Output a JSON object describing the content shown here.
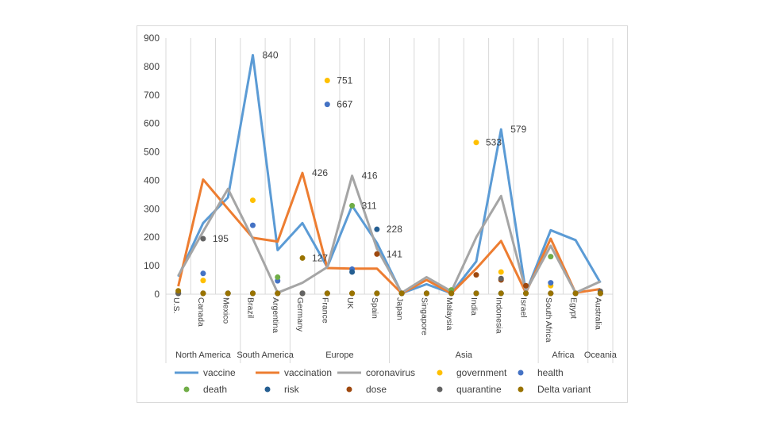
{
  "chart_data": {
    "type": "line",
    "categories": [
      "U.S.",
      "Canada",
      "Mexico",
      "Brazil",
      "Argentina",
      "Germany",
      "France",
      "UK",
      "Spain",
      "Japan",
      "Singapore",
      "Malaysia",
      "India",
      "Indonesia",
      "Israel",
      "South Africa",
      "Egypt",
      "Australia"
    ],
    "groups": [
      {
        "label": "North America",
        "start": 0,
        "end": 2
      },
      {
        "label": "South America",
        "start": 3,
        "end": 4
      },
      {
        "label": "Europe",
        "start": 5,
        "end": 8
      },
      {
        "label": "Asia",
        "start": 9,
        "end": 14
      },
      {
        "label": "Africa",
        "start": 15,
        "end": 16
      },
      {
        "label": "Oceania",
        "start": 17,
        "end": 17
      }
    ],
    "ylim": [
      0,
      900
    ],
    "yticks": [
      0,
      100,
      200,
      300,
      400,
      500,
      600,
      700,
      800,
      900
    ],
    "grid": "vertical",
    "legend_position": "bottom",
    "series": [
      {
        "name": "vaccine",
        "kind": "line",
        "color": "#5B9BD5",
        "values": [
          62,
          250,
          340,
          840,
          155,
          250,
          95,
          311,
          180,
          3,
          35,
          3,
          115,
          579,
          5,
          225,
          190,
          40
        ]
      },
      {
        "name": "vaccination",
        "kind": "line",
        "color": "#ED7D31",
        "values": [
          28,
          403,
          300,
          198,
          185,
          426,
          92,
          90,
          90,
          3,
          50,
          3,
          90,
          187,
          5,
          195,
          5,
          18
        ]
      },
      {
        "name": "coronavirus",
        "kind": "line",
        "color": "#A5A5A5",
        "values": [
          65,
          220,
          370,
          195,
          5,
          40,
          95,
          416,
          160,
          5,
          60,
          10,
          200,
          345,
          10,
          170,
          5,
          45
        ]
      },
      {
        "name": "government",
        "kind": "scatter",
        "color": "#FFC000",
        "values": [
          8,
          48,
          3,
          330,
          3,
          3,
          751,
          3,
          3,
          3,
          3,
          3,
          533,
          78,
          3,
          30,
          3,
          3
        ]
      },
      {
        "name": "health",
        "kind": "scatter",
        "color": "#4472C4",
        "values": [
          5,
          73,
          3,
          242,
          47,
          3,
          667,
          88,
          3,
          3,
          3,
          3,
          3,
          3,
          3,
          40,
          3,
          3
        ]
      },
      {
        "name": "death",
        "kind": "scatter",
        "color": "#70AD47",
        "values": [
          3,
          3,
          3,
          3,
          60,
          3,
          3,
          311,
          3,
          3,
          3,
          15,
          3,
          3,
          3,
          132,
          3,
          3
        ]
      },
      {
        "name": "risk",
        "kind": "scatter",
        "color": "#255E91",
        "values": [
          3,
          3,
          3,
          3,
          3,
          3,
          3,
          78,
          228,
          3,
          3,
          3,
          3,
          3,
          3,
          3,
          3,
          3
        ]
      },
      {
        "name": "dose",
        "kind": "scatter",
        "color": "#9E480E",
        "values": [
          3,
          3,
          3,
          3,
          3,
          3,
          3,
          3,
          141,
          3,
          3,
          3,
          68,
          50,
          30,
          3,
          3,
          3
        ]
      },
      {
        "name": "quarantine",
        "kind": "scatter",
        "color": "#636363",
        "values": [
          3,
          195,
          3,
          3,
          3,
          3,
          3,
          3,
          3,
          3,
          3,
          3,
          3,
          55,
          3,
          3,
          3,
          10
        ]
      },
      {
        "name": "Delta variant",
        "kind": "scatter",
        "color": "#997300",
        "values": [
          12,
          3,
          3,
          3,
          3,
          127,
          3,
          3,
          3,
          3,
          3,
          3,
          3,
          3,
          3,
          3,
          3,
          3
        ]
      }
    ],
    "data_labels": [
      {
        "series": "vaccine",
        "category": "Brazil",
        "text": "840"
      },
      {
        "series": "government",
        "category": "France",
        "text": "751"
      },
      {
        "series": "health",
        "category": "France",
        "text": "667"
      },
      {
        "series": "government",
        "category": "India",
        "text": "533"
      },
      {
        "series": "vaccine",
        "category": "Indonesia",
        "text": "579"
      },
      {
        "series": "vaccination",
        "category": "Germany",
        "text": "426"
      },
      {
        "series": "coronavirus",
        "category": "UK",
        "text": "416"
      },
      {
        "series": "death",
        "category": "UK",
        "text": "311"
      },
      {
        "series": "risk",
        "category": "Spain",
        "text": "228"
      },
      {
        "series": "quarantine",
        "category": "Canada",
        "text": "195"
      },
      {
        "series": "dose",
        "category": "Spain",
        "text": "141"
      },
      {
        "series": "Delta variant",
        "category": "Germany",
        "text": "127"
      }
    ]
  }
}
